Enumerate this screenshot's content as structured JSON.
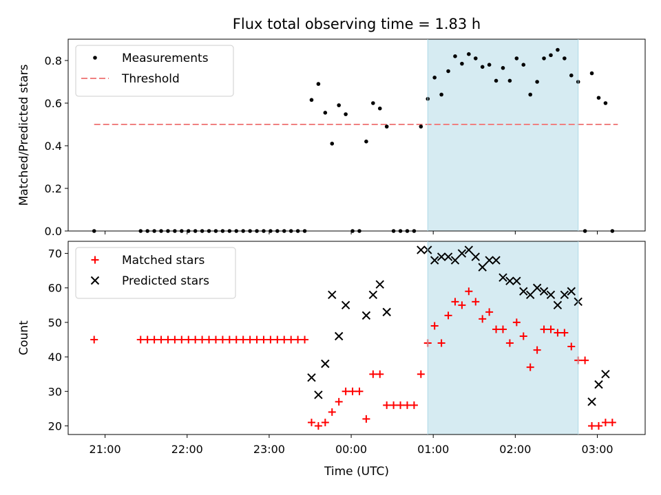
{
  "chart_data": [
    {
      "type": "scatter",
      "title": "Flux total observing time = 1.83 h",
      "xlabel": "",
      "ylabel": "Matched/Predicted stars",
      "xlim": [
        "20:33",
        "03:35"
      ],
      "ylim": [
        0,
        0.9
      ],
      "yticks": [
        0.0,
        0.2,
        0.4,
        0.6,
        0.8
      ],
      "ytick_labels": [
        "0.0",
        "0.2",
        "0.4",
        "0.6",
        "0.8"
      ],
      "legend_position": "upper-left",
      "highlight_span": [
        "00:56",
        "02:46"
      ],
      "highlight_color": "#add8e6",
      "threshold": {
        "name": "Threshold",
        "value": 0.5,
        "x": [
          "20:52",
          "03:15"
        ],
        "color": "#f08080",
        "style": "dashed"
      },
      "series": [
        {
          "name": "Measurements",
          "marker": "dot",
          "color": "#000000",
          "points": [
            [
              "20:52",
              0.0
            ],
            [
              "21:26",
              0.0
            ],
            [
              "21:31",
              0.0
            ],
            [
              "21:36",
              0.0
            ],
            [
              "21:41",
              0.0
            ],
            [
              "21:46",
              0.0
            ],
            [
              "21:51",
              0.0
            ],
            [
              "21:56",
              0.0
            ],
            [
              "22:01",
              0.0
            ],
            [
              "22:06",
              0.0
            ],
            [
              "22:11",
              0.0
            ],
            [
              "22:16",
              0.0
            ],
            [
              "22:21",
              0.0
            ],
            [
              "22:26",
              0.0
            ],
            [
              "22:31",
              0.0
            ],
            [
              "22:36",
              0.0
            ],
            [
              "22:41",
              0.0
            ],
            [
              "22:46",
              0.0
            ],
            [
              "22:51",
              0.0
            ],
            [
              "22:56",
              0.0
            ],
            [
              "23:01",
              0.0
            ],
            [
              "23:06",
              0.0
            ],
            [
              "23:11",
              0.0
            ],
            [
              "23:16",
              0.0
            ],
            [
              "23:21",
              0.0
            ],
            [
              "23:26",
              0.0
            ],
            [
              "23:31",
              0.615
            ],
            [
              "23:36",
              0.69
            ],
            [
              "23:41",
              0.555
            ],
            [
              "23:46",
              0.41
            ],
            [
              "23:51",
              0.59
            ],
            [
              "23:56",
              0.548
            ],
            [
              "00:01",
              0.0
            ],
            [
              "00:06",
              0.0
            ],
            [
              "00:11",
              0.42
            ],
            [
              "00:16",
              0.6
            ],
            [
              "00:21",
              0.575
            ],
            [
              "00:26",
              0.49
            ],
            [
              "00:31",
              0.0
            ],
            [
              "00:36",
              0.0
            ],
            [
              "00:41",
              0.0
            ],
            [
              "00:46",
              0.0
            ],
            [
              "00:51",
              0.49
            ],
            [
              "00:56",
              0.62
            ],
            [
              "01:01",
              0.72
            ],
            [
              "01:06",
              0.64
            ],
            [
              "01:11",
              0.75
            ],
            [
              "01:16",
              0.82
            ],
            [
              "01:21",
              0.785
            ],
            [
              "01:26",
              0.83
            ],
            [
              "01:31",
              0.81
            ],
            [
              "01:36",
              0.77
            ],
            [
              "01:41",
              0.78
            ],
            [
              "01:46",
              0.705
            ],
            [
              "01:51",
              0.765
            ],
            [
              "01:56",
              0.705
            ],
            [
              "02:01",
              0.81
            ],
            [
              "02:06",
              0.78
            ],
            [
              "02:11",
              0.64
            ],
            [
              "02:16",
              0.7
            ],
            [
              "02:21",
              0.81
            ],
            [
              "02:26",
              0.825
            ],
            [
              "02:31",
              0.85
            ],
            [
              "02:36",
              0.81
            ],
            [
              "02:41",
              0.73
            ],
            [
              "02:46",
              0.7
            ],
            [
              "02:51",
              0.0
            ],
            [
              "02:56",
              0.74
            ],
            [
              "03:01",
              0.625
            ],
            [
              "03:06",
              0.6
            ],
            [
              "03:11",
              0.0
            ]
          ]
        }
      ]
    },
    {
      "type": "scatter",
      "title": "",
      "xlabel": "Time (UTC)",
      "ylabel": "Count",
      "xlim": [
        "20:33",
        "03:35"
      ],
      "ylim": [
        17.5,
        73.5
      ],
      "yticks": [
        20,
        30,
        40,
        50,
        60,
        70
      ],
      "ytick_labels": [
        "20",
        "30",
        "40",
        "50",
        "60",
        "70"
      ],
      "xtick_labels": [
        "21:00",
        "22:00",
        "23:00",
        "00:00",
        "01:00",
        "02:00",
        "03:00"
      ],
      "xticks": [
        "21:00",
        "22:00",
        "23:00",
        "00:00",
        "01:00",
        "02:00",
        "03:00"
      ],
      "legend_position": "upper-left",
      "highlight_span": [
        "00:56",
        "02:46"
      ],
      "highlight_color": "#add8e6",
      "series": [
        {
          "name": "Matched stars",
          "marker": "plus",
          "color": "#ff0000",
          "points": [
            [
              "20:52",
              45
            ],
            [
              "21:26",
              45
            ],
            [
              "21:31",
              45
            ],
            [
              "21:36",
              45
            ],
            [
              "21:41",
              45
            ],
            [
              "21:46",
              45
            ],
            [
              "21:51",
              45
            ],
            [
              "21:56",
              45
            ],
            [
              "22:01",
              45
            ],
            [
              "22:06",
              45
            ],
            [
              "22:11",
              45
            ],
            [
              "22:16",
              45
            ],
            [
              "22:21",
              45
            ],
            [
              "22:26",
              45
            ],
            [
              "22:31",
              45
            ],
            [
              "22:36",
              45
            ],
            [
              "22:41",
              45
            ],
            [
              "22:46",
              45
            ],
            [
              "22:51",
              45
            ],
            [
              "22:56",
              45
            ],
            [
              "23:01",
              45
            ],
            [
              "23:06",
              45
            ],
            [
              "23:11",
              45
            ],
            [
              "23:16",
              45
            ],
            [
              "23:21",
              45
            ],
            [
              "23:26",
              45
            ],
            [
              "23:31",
              21
            ],
            [
              "23:36",
              20
            ],
            [
              "23:41",
              21
            ],
            [
              "23:46",
              24
            ],
            [
              "23:51",
              27
            ],
            [
              "23:56",
              30
            ],
            [
              "00:01",
              30
            ],
            [
              "00:06",
              30
            ],
            [
              "00:11",
              22
            ],
            [
              "00:16",
              35
            ],
            [
              "00:21",
              35
            ],
            [
              "00:26",
              26
            ],
            [
              "00:31",
              26
            ],
            [
              "00:36",
              26
            ],
            [
              "00:41",
              26
            ],
            [
              "00:46",
              26
            ],
            [
              "00:51",
              35
            ],
            [
              "00:56",
              44
            ],
            [
              "01:01",
              49
            ],
            [
              "01:06",
              44
            ],
            [
              "01:11",
              52
            ],
            [
              "01:16",
              56
            ],
            [
              "01:21",
              55
            ],
            [
              "01:26",
              59
            ],
            [
              "01:31",
              56
            ],
            [
              "01:36",
              51
            ],
            [
              "01:41",
              53
            ],
            [
              "01:46",
              48
            ],
            [
              "01:51",
              48
            ],
            [
              "01:56",
              44
            ],
            [
              "02:01",
              50
            ],
            [
              "02:06",
              46
            ],
            [
              "02:11",
              37
            ],
            [
              "02:16",
              42
            ],
            [
              "02:21",
              48
            ],
            [
              "02:26",
              48
            ],
            [
              "02:31",
              47
            ],
            [
              "02:36",
              47
            ],
            [
              "02:41",
              43
            ],
            [
              "02:46",
              39
            ],
            [
              "02:51",
              39
            ],
            [
              "02:56",
              20
            ],
            [
              "03:01",
              20
            ],
            [
              "03:06",
              21
            ],
            [
              "03:11",
              21
            ]
          ]
        },
        {
          "name": "Predicted stars",
          "marker": "x",
          "color": "#000000",
          "points": [
            [
              "23:31",
              34
            ],
            [
              "23:36",
              29
            ],
            [
              "23:41",
              38
            ],
            [
              "23:46",
              58
            ],
            [
              "23:51",
              46
            ],
            [
              "23:56",
              55
            ],
            [
              "00:11",
              52
            ],
            [
              "00:16",
              58
            ],
            [
              "00:21",
              61
            ],
            [
              "00:26",
              53
            ],
            [
              "00:51",
              71
            ],
            [
              "00:56",
              71
            ],
            [
              "01:01",
              68
            ],
            [
              "01:06",
              69
            ],
            [
              "01:11",
              69
            ],
            [
              "01:16",
              68
            ],
            [
              "01:21",
              70
            ],
            [
              "01:26",
              71
            ],
            [
              "01:31",
              69
            ],
            [
              "01:36",
              66
            ],
            [
              "01:41",
              68
            ],
            [
              "01:46",
              68
            ],
            [
              "01:51",
              63
            ],
            [
              "01:56",
              62
            ],
            [
              "02:01",
              62
            ],
            [
              "02:06",
              59
            ],
            [
              "02:11",
              58
            ],
            [
              "02:16",
              60
            ],
            [
              "02:21",
              59
            ],
            [
              "02:26",
              58
            ],
            [
              "02:31",
              55
            ],
            [
              "02:36",
              58
            ],
            [
              "02:41",
              59
            ],
            [
              "02:46",
              56
            ],
            [
              "02:56",
              27
            ],
            [
              "03:01",
              32
            ],
            [
              "03:06",
              35
            ]
          ]
        }
      ]
    }
  ]
}
